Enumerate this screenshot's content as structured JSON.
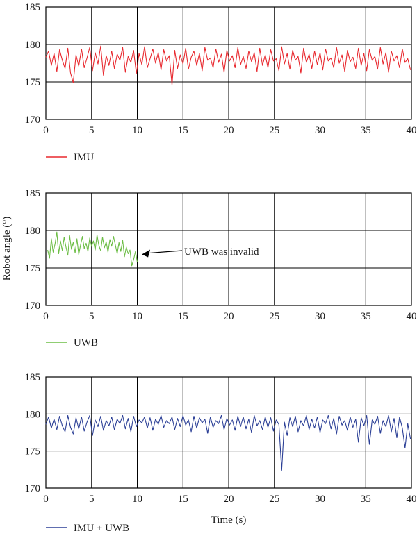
{
  "chart_data": [
    {
      "type": "line",
      "id": "imu",
      "xlim": [
        0,
        40
      ],
      "ylim": [
        170,
        185
      ],
      "x_ticks": [
        0,
        5,
        10,
        15,
        20,
        25,
        30,
        35,
        40
      ],
      "y_ticks": [
        170,
        175,
        180,
        185
      ],
      "x_tick_labels": [
        "0",
        "5",
        "10",
        "15",
        "20",
        "25",
        "30",
        "35",
        "40"
      ],
      "y_tick_labels": [
        "170",
        "175",
        "180",
        "185"
      ],
      "grid": true,
      "legend_position": "bottom-left",
      "series": [
        {
          "name": "IMU",
          "color": "#e8282e",
          "x": [
            0.0,
            0.3,
            0.6,
            0.9,
            1.2,
            1.5,
            1.8,
            2.1,
            2.4,
            2.7,
            3.0,
            3.3,
            3.6,
            3.9,
            4.2,
            4.5,
            4.8,
            5.1,
            5.4,
            5.7,
            6.0,
            6.3,
            6.6,
            6.9,
            7.2,
            7.5,
            7.8,
            8.1,
            8.4,
            8.7,
            9.0,
            9.3,
            9.6,
            9.9,
            10.2,
            10.5,
            10.8,
            11.1,
            11.4,
            11.7,
            12.0,
            12.3,
            12.6,
            12.9,
            13.2,
            13.5,
            13.8,
            14.1,
            14.4,
            14.7,
            15.0,
            15.3,
            15.6,
            15.9,
            16.2,
            16.5,
            16.8,
            17.1,
            17.4,
            17.7,
            18.0,
            18.3,
            18.6,
            18.9,
            19.2,
            19.5,
            19.8,
            20.1,
            20.4,
            20.7,
            21.0,
            21.3,
            21.6,
            21.9,
            22.2,
            22.5,
            22.8,
            23.1,
            23.4,
            23.7,
            24.0,
            24.3,
            24.6,
            24.9,
            25.2,
            25.5,
            25.8,
            26.1,
            26.4,
            26.7,
            27.0,
            27.3,
            27.6,
            27.9,
            28.2,
            28.5,
            28.8,
            29.1,
            29.4,
            29.7,
            30.0,
            30.3,
            30.6,
            30.9,
            31.2,
            31.5,
            31.8,
            32.1,
            32.4,
            32.7,
            33.0,
            33.3,
            33.6,
            33.9,
            34.2,
            34.5,
            34.8,
            35.1,
            35.4,
            35.7,
            36.0,
            36.3,
            36.6,
            36.9,
            37.2,
            37.5,
            37.8,
            38.1,
            38.4,
            38.7,
            39.0,
            39.3,
            39.6,
            39.9
          ],
          "y": [
            178.3,
            179.1,
            177.2,
            178.8,
            176.4,
            179.3,
            177.9,
            176.8,
            179.5,
            176.2,
            174.9,
            178.6,
            177.1,
            179.4,
            176.9,
            178.2,
            179.6,
            176.5,
            178.9,
            177.4,
            179.8,
            175.9,
            178.5,
            177.2,
            179.1,
            176.8,
            178.7,
            177.9,
            179.6,
            176.3,
            178.4,
            177.6,
            179.2,
            176.1,
            178.8,
            177.3,
            179.7,
            176.9,
            178.1,
            179.4,
            177.5,
            178.9,
            176.6,
            179.3,
            177.8,
            178.5,
            174.6,
            179.2,
            176.8,
            178.6,
            177.4,
            179.5,
            176.7,
            178.3,
            179.1,
            177.2,
            178.8,
            176.5,
            179.6,
            177.9,
            178.2,
            176.9,
            179.4,
            177.6,
            178.7,
            176.3,
            179.2,
            177.8,
            178.5,
            176.9,
            179.6,
            177.3,
            178.4,
            176.8,
            179.1,
            177.7,
            178.9,
            176.4,
            179.5,
            177.2,
            178.6,
            176.9,
            179.3,
            177.8,
            178.1,
            176.5,
            179.7,
            177.4,
            178.8,
            176.7,
            179.2,
            177.9,
            178.4,
            176.2,
            179.5,
            177.6,
            178.7,
            176.8,
            179.1,
            177.3,
            178.9,
            176.6,
            179.4,
            177.8,
            178.2,
            176.9,
            179.6,
            177.5,
            178.6,
            176.4,
            179.2,
            177.7,
            178.3,
            176.8,
            179.5,
            177.2,
            178.8,
            176.5,
            179.3,
            177.9,
            178.4,
            176.7,
            179.6,
            177.4,
            178.9,
            176.3,
            179.1,
            177.8,
            178.5,
            176.9,
            179.4,
            177.6,
            178.1,
            176.6
          ]
        }
      ]
    },
    {
      "type": "line",
      "id": "uwb",
      "xlim": [
        0,
        40
      ],
      "ylim": [
        170,
        185
      ],
      "x_ticks": [
        0,
        5,
        10,
        15,
        20,
        25,
        30,
        35,
        40
      ],
      "y_ticks": [
        170,
        175,
        180,
        185
      ],
      "x_tick_labels": [
        "0",
        "5",
        "10",
        "15",
        "20",
        "25",
        "30",
        "35",
        "40"
      ],
      "y_tick_labels": [
        "170",
        "175",
        "180",
        "185"
      ],
      "ylabel": "Robot angle (°)",
      "grid": true,
      "legend_position": "bottom-left",
      "vline_x": 10,
      "annotation": {
        "text": "UWB was invalid",
        "arrow_to": [
          10.5,
          176.8
        ]
      },
      "series": [
        {
          "name": "UWB",
          "color": "#6cbd45",
          "x": [
            0.2,
            0.4,
            0.6,
            0.8,
            1.0,
            1.2,
            1.4,
            1.6,
            1.8,
            2.0,
            2.2,
            2.4,
            2.6,
            2.8,
            3.0,
            3.2,
            3.4,
            3.6,
            3.8,
            4.0,
            4.2,
            4.4,
            4.6,
            4.8,
            5.0,
            5.2,
            5.4,
            5.6,
            5.8,
            6.0,
            6.2,
            6.4,
            6.6,
            6.8,
            7.0,
            7.2,
            7.4,
            7.6,
            7.8,
            8.0,
            8.2,
            8.4,
            8.6,
            8.8,
            9.0,
            9.2,
            9.4,
            9.6,
            9.8,
            10.0
          ],
          "y": [
            177.4,
            176.3,
            178.9,
            177.1,
            178.2,
            179.8,
            176.9,
            178.6,
            177.3,
            179.1,
            177.8,
            176.7,
            179.3,
            177.5,
            178.4,
            177.0,
            178.9,
            176.8,
            178.1,
            179.2,
            177.6,
            178.3,
            177.2,
            179.0,
            177.9,
            178.6,
            177.4,
            179.4,
            178.0,
            177.3,
            179.1,
            177.7,
            178.5,
            177.1,
            178.8,
            177.9,
            179.2,
            178.1,
            176.9,
            178.4,
            177.2,
            178.7,
            176.5,
            177.8,
            176.9,
            177.4,
            175.3,
            176.1,
            177.2,
            175.8
          ]
        }
      ]
    },
    {
      "type": "line",
      "id": "fusion",
      "xlim": [
        0,
        40
      ],
      "ylim": [
        170,
        185
      ],
      "x_ticks": [
        0,
        5,
        10,
        15,
        20,
        25,
        30,
        35,
        40
      ],
      "y_ticks": [
        170,
        175,
        180,
        185
      ],
      "x_tick_labels": [
        "0",
        "5",
        "10",
        "15",
        "20",
        "25",
        "30",
        "35",
        "40"
      ],
      "y_tick_labels": [
        "170",
        "175",
        "180",
        "185"
      ],
      "xlabel": "Time (s)",
      "grid": true,
      "legend_position": "bottom-left",
      "series": [
        {
          "name": "IMU + UWB",
          "color": "#2b3f96",
          "x": [
            0.0,
            0.3,
            0.6,
            0.9,
            1.2,
            1.5,
            1.8,
            2.1,
            2.4,
            2.7,
            3.0,
            3.3,
            3.6,
            3.9,
            4.2,
            4.5,
            4.8,
            5.1,
            5.4,
            5.7,
            6.0,
            6.3,
            6.6,
            6.9,
            7.2,
            7.5,
            7.8,
            8.1,
            8.4,
            8.7,
            9.0,
            9.3,
            9.6,
            9.9,
            10.2,
            10.5,
            10.8,
            11.1,
            11.4,
            11.7,
            12.0,
            12.3,
            12.6,
            12.9,
            13.2,
            13.5,
            13.8,
            14.1,
            14.4,
            14.7,
            15.0,
            15.3,
            15.6,
            15.9,
            16.2,
            16.5,
            16.8,
            17.1,
            17.4,
            17.7,
            18.0,
            18.3,
            18.6,
            18.9,
            19.2,
            19.5,
            19.8,
            20.1,
            20.4,
            20.7,
            21.0,
            21.3,
            21.6,
            21.9,
            22.2,
            22.5,
            22.8,
            23.1,
            23.4,
            23.7,
            24.0,
            24.3,
            24.6,
            24.9,
            25.2,
            25.5,
            25.8,
            26.1,
            26.4,
            26.7,
            27.0,
            27.3,
            27.6,
            27.9,
            28.2,
            28.5,
            28.8,
            29.1,
            29.4,
            29.7,
            30.0,
            30.3,
            30.6,
            30.9,
            31.2,
            31.5,
            31.8,
            32.1,
            32.4,
            32.7,
            33.0,
            33.3,
            33.6,
            33.9,
            34.2,
            34.5,
            34.8,
            35.1,
            35.4,
            35.7,
            36.0,
            36.3,
            36.6,
            36.9,
            37.2,
            37.5,
            37.8,
            38.1,
            38.4,
            38.7,
            39.0,
            39.3,
            39.6,
            39.9
          ],
          "y": [
            178.6,
            179.6,
            178.1,
            179.3,
            177.9,
            179.7,
            178.4,
            177.6,
            179.8,
            178.2,
            177.3,
            179.5,
            178.0,
            179.6,
            177.7,
            178.9,
            179.8,
            177.1,
            179.2,
            178.3,
            179.7,
            177.8,
            179.1,
            178.4,
            179.6,
            177.9,
            179.3,
            178.7,
            179.8,
            178.0,
            179.4,
            177.6,
            179.7,
            178.3,
            179.2,
            178.8,
            179.6,
            178.1,
            179.5,
            177.8,
            179.3,
            178.6,
            179.8,
            178.2,
            179.1,
            178.7,
            179.6,
            177.9,
            179.4,
            178.3,
            179.8,
            178.5,
            179.2,
            177.6,
            179.7,
            178.1,
            179.5,
            178.8,
            179.3,
            177.4,
            179.6,
            178.2,
            179.1,
            178.7,
            179.8,
            177.9,
            179.4,
            178.5,
            179.2,
            177.8,
            179.7,
            178.3,
            179.6,
            178.0,
            179.3,
            177.5,
            179.8,
            178.4,
            179.1,
            177.9,
            179.6,
            178.2,
            179.5,
            177.7,
            179.2,
            178.6,
            172.4,
            178.9,
            177.1,
            179.5,
            178.3,
            179.7,
            177.6,
            179.1,
            178.4,
            179.8,
            177.9,
            179.3,
            178.1,
            179.6,
            177.5,
            179.2,
            178.7,
            179.8,
            178.0,
            179.4,
            177.3,
            179.7,
            178.5,
            179.1,
            177.8,
            179.6,
            178.2,
            179.3,
            176.2,
            179.5,
            178.4,
            179.8,
            175.9,
            179.2,
            178.6,
            179.7,
            177.4,
            179.1,
            178.3,
            179.8,
            177.6,
            179.4,
            176.8,
            179.6,
            178.1,
            175.4,
            178.7,
            176.6
          ]
        }
      ]
    }
  ]
}
